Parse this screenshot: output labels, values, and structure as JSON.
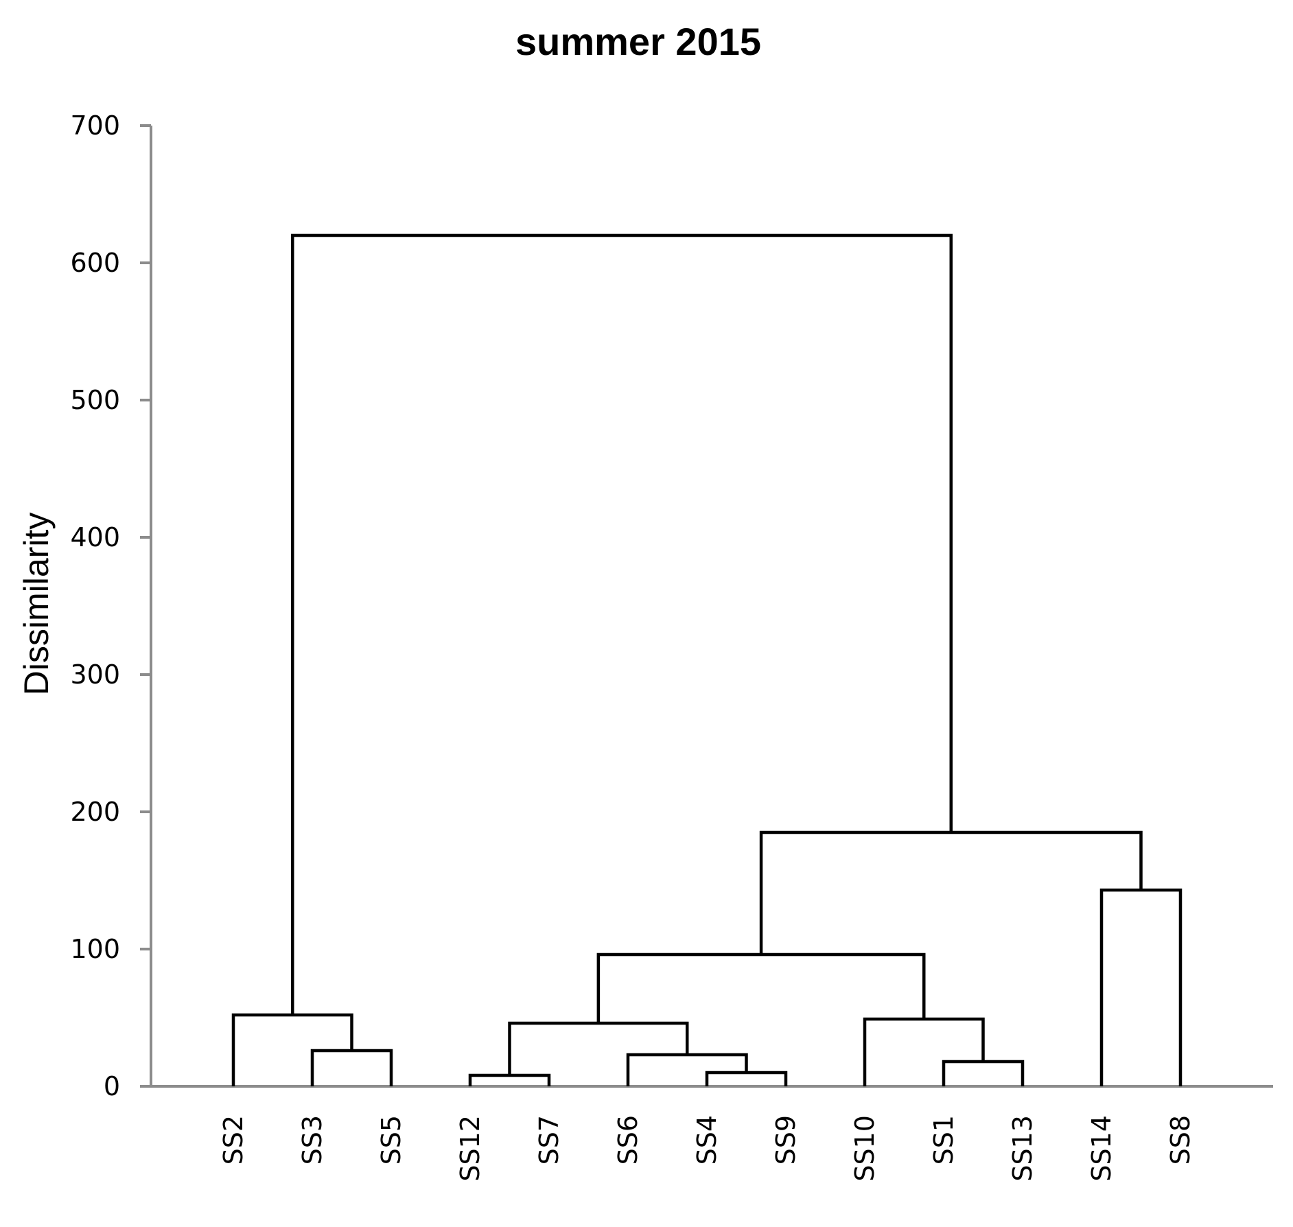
{
  "chart_data": {
    "type": "dendrogram",
    "title": "summer 2015",
    "xlabel": "",
    "ylabel": "Dissimilarity",
    "ylim": [
      0,
      700
    ],
    "yticks": [
      0,
      100,
      200,
      300,
      400,
      500,
      600,
      700
    ],
    "grid": false,
    "leaves": [
      "SS2",
      "SS3",
      "SS5",
      "SS12",
      "SS7",
      "SS6",
      "SS4",
      "SS9",
      "SS10",
      "SS1",
      "SS13",
      "SS14",
      "SS8"
    ],
    "merges": [
      {
        "left": "SS12",
        "right": "SS7",
        "height": 8
      },
      {
        "left": "SS4",
        "right": "SS9",
        "height": 10
      },
      {
        "left": "SS1",
        "right": "SS13",
        "height": 18
      },
      {
        "left": "SS6",
        "right": "SS4+SS9",
        "height": 23
      },
      {
        "left": "SS3",
        "right": "SS5",
        "height": 26
      },
      {
        "left": "SS12+SS7",
        "right": "SS6+SS4+SS9",
        "height": 46
      },
      {
        "left": "SS10",
        "right": "SS1+SS13",
        "height": 49
      },
      {
        "left": "SS2",
        "right": "SS3+SS5",
        "height": 52
      },
      {
        "left": "SS12+SS7+SS6+SS4+SS9",
        "right": "SS10+SS1+SS13",
        "height": 96
      },
      {
        "left": "SS14",
        "right": "SS8",
        "height": 143
      },
      {
        "left": "SS12+SS7+SS6+SS4+SS9+SS10+SS1+SS13",
        "right": "SS14+SS8",
        "height": 185
      },
      {
        "left": "SS2+SS3+SS5",
        "right": "SS12+SS7+SS6+SS4+SS9+SS10+SS1+SS13+SS14+SS8",
        "height": 620
      }
    ]
  }
}
